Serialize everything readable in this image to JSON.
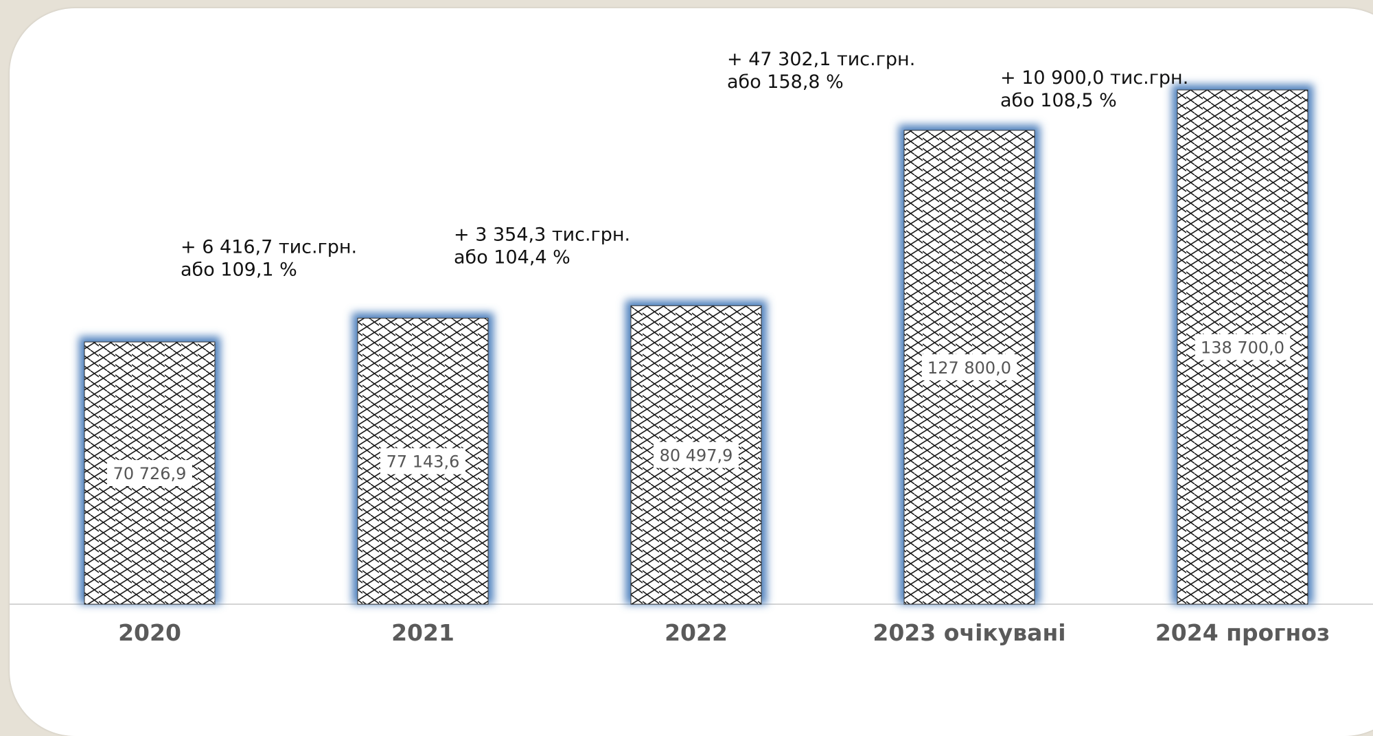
{
  "chart_data": {
    "type": "bar",
    "categories": [
      "2020",
      "2021",
      "2022",
      "2023 очікувані",
      "2024 прогноз"
    ],
    "values": [
      70726.9,
      77143.6,
      80497.9,
      127800.0,
      138700.0
    ],
    "value_labels": [
      "70 726,9",
      "77 143,6",
      "80 497,9",
      "127 800,0",
      "138 700,0"
    ],
    "ylim": [
      0,
      140000
    ],
    "grid": false,
    "legend": "none",
    "bar_pattern": "diagonal-crosshatch",
    "bar_glow_color": "#4f81bd",
    "annotations": [
      {
        "line1": "+ 6 416,7 тис.грн.",
        "line2": "або 109,1 %"
      },
      {
        "line1": "+ 3 354,3 тис.грн.",
        "line2": "або 104,4 %"
      },
      {
        "line1": "+ 47 302,1 тис.грн.",
        "line2": "або 158,8 %"
      },
      {
        "line1": "+ 10 900,0 тис.грн.",
        "line2": "або 108,5 %"
      }
    ]
  }
}
